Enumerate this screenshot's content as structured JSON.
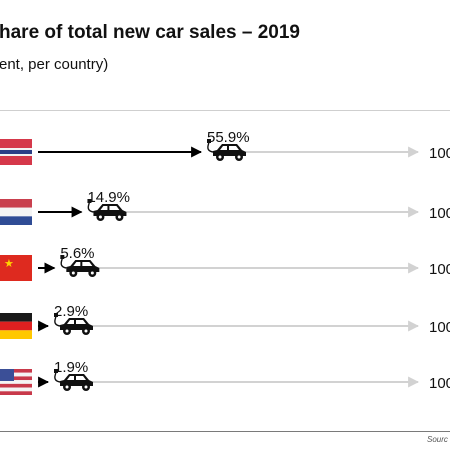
{
  "header": {
    "title": "hare of total new car sales – 2019",
    "subtitle": "ent, per country)"
  },
  "footer": {
    "source": "Sourc"
  },
  "chart_data": {
    "type": "bar",
    "categories": [
      "Norway",
      "Netherlands",
      "China",
      "Germany",
      "United States"
    ],
    "values": [
      55.9,
      14.9,
      5.6,
      2.9,
      1.9
    ],
    "value_labels": [
      "55.9%",
      "14.9%",
      "5.6%",
      "2.9%",
      "1.9%"
    ],
    "max_label": "100",
    "xlim": [
      0,
      100
    ],
    "grid": false,
    "colors": {
      "arrow": "#000000",
      "track": "#d2d2d2",
      "car": "#111111"
    }
  }
}
